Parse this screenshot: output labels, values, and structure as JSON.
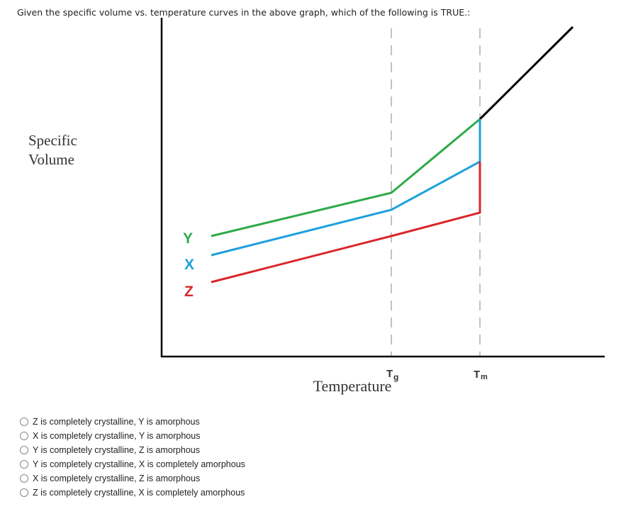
{
  "question": "Given the specific volume vs. temperature curves in the above graph, which of the following is TRUE.:",
  "graph": {
    "y_axis_label": [
      "Specific",
      "Volume"
    ],
    "x_axis_label": "Temperature",
    "tg": {
      "symbol": "T",
      "subscript": "g"
    },
    "tm": {
      "symbol": "T",
      "subscript": "m"
    },
    "curve_labels": [
      "Y",
      "X",
      "Z"
    ]
  },
  "options": [
    "Z is completely crystalline, Y is amorphous",
    "X is completely crystalline, Y is amorphous",
    "Y is completely crystalline, Z is amorphous",
    "Y is completely crystalline, X is completely amorphous",
    "X is completely crystalline, Z is amorphous",
    "Z is completely crystalline, X is completely amorphous"
  ]
}
